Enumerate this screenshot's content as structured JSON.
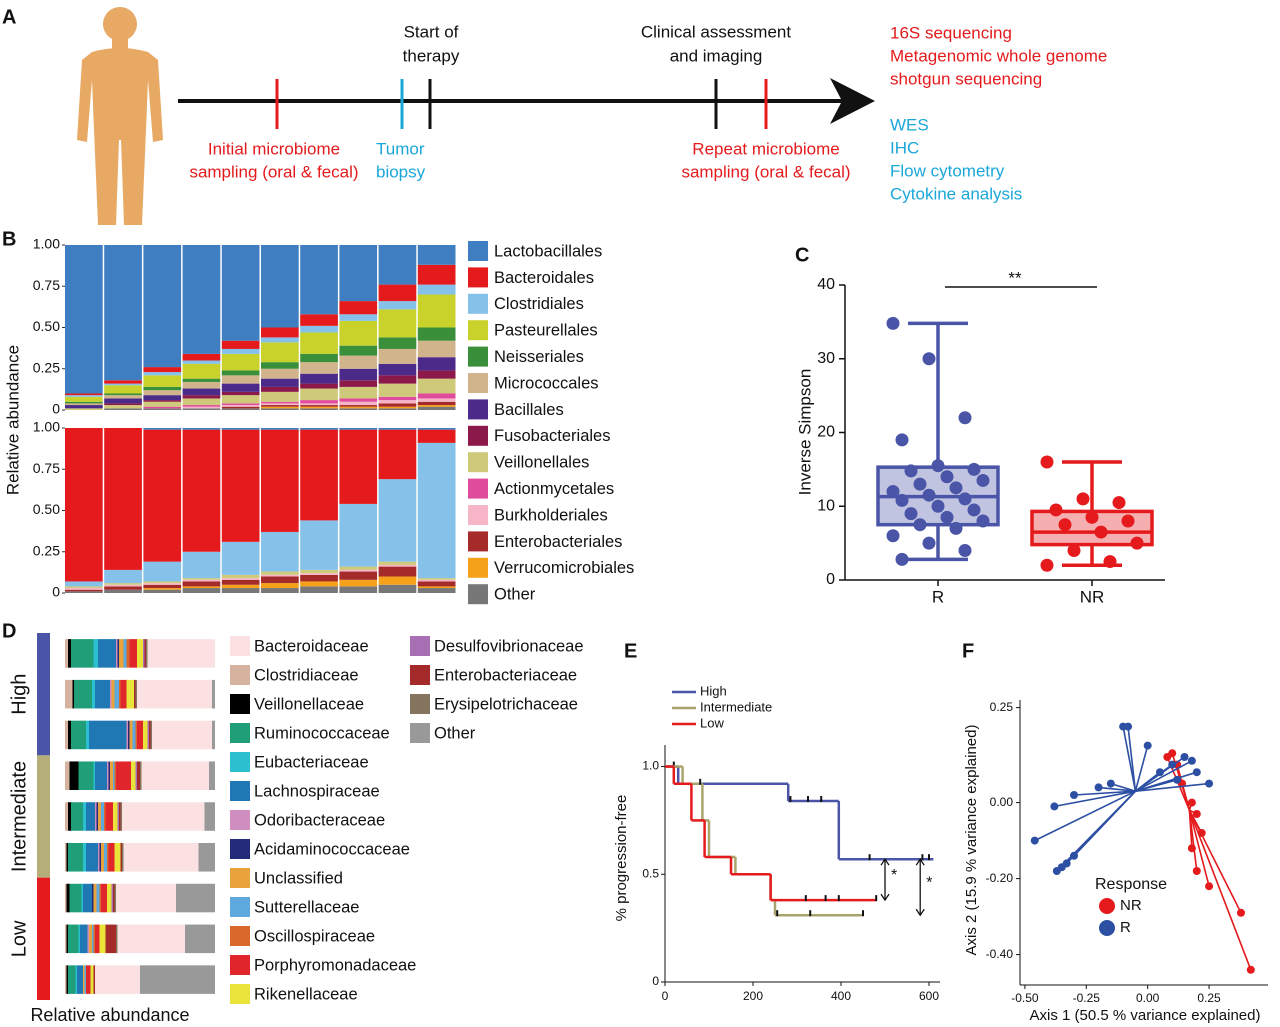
{
  "timeline": {
    "label": "A",
    "above": [
      {
        "lines": [
          "Start of",
          "therapy"
        ]
      },
      {
        "lines": [
          "Clinical assessment",
          "and imaging"
        ]
      }
    ],
    "below": [
      {
        "lines": [
          "Initial microbiome",
          "sampling (oral & fecal)"
        ],
        "color": "#e41a1c"
      },
      {
        "lines": [
          "Tumor",
          "biopsy"
        ],
        "color": "#1aa7d9"
      },
      {
        "lines": [
          "Repeat microbiome",
          "sampling (oral & fecal)"
        ],
        "color": "#e41a1c"
      }
    ],
    "outputs": [
      {
        "lines": [
          "16S sequencing",
          "Metagenomic whole genome",
          "shotgun sequencing"
        ],
        "color": "#e41a1c"
      },
      {
        "lines": [
          "WES",
          "IHC",
          "Flow cytometry",
          "Cytokine analysis"
        ],
        "color": "#1aa7d9"
      }
    ]
  },
  "chart_data": [
    {
      "type": "stacked_bar",
      "label": "B",
      "ylabel": "Relative abundance",
      "ylim": [
        0,
        1
      ],
      "yticks": [
        0,
        0.25,
        {
          "value": 0.5,
          "label": "0.50"
        },
        0.75,
        {
          "value": 1,
          "label": "1.00"
        }
      ],
      "series": [
        {
          "name": "Lactobacillales",
          "color": "#3f7fc1",
          "values": [
            0.9,
            0.82,
            0.74,
            0.66,
            0.58,
            0.5,
            0.42,
            0.34,
            0.24,
            0.12
          ],
          "lower_values": [
            0,
            0,
            0.01,
            0.01,
            0.01,
            0.01,
            0.01,
            0.01,
            0.01,
            0.01
          ]
        },
        {
          "name": "Bacteroidales",
          "color": "#e41a1c",
          "values": [
            0.01,
            0.02,
            0.03,
            0.04,
            0.05,
            0.06,
            0.07,
            0.08,
            0.1,
            0.12
          ],
          "lower_values": [
            0.93,
            0.86,
            0.8,
            0.74,
            0.68,
            0.62,
            0.55,
            0.45,
            0.3,
            0.08
          ]
        },
        {
          "name": "Clostridiales",
          "color": "#85c1e9",
          "values": [
            0.01,
            0.01,
            0.02,
            0.02,
            0.03,
            0.03,
            0.04,
            0.04,
            0.05,
            0.06
          ],
          "lower_values": [
            0.03,
            0.08,
            0.12,
            0.16,
            0.2,
            0.24,
            0.3,
            0.38,
            0.5,
            0.82
          ]
        },
        {
          "name": "Pasteurellales",
          "color": "#c8d22a",
          "values": [
            0.03,
            0.05,
            0.07,
            0.09,
            0.1,
            0.12,
            0.13,
            0.15,
            0.17,
            0.2
          ],
          "lower_values": [
            0,
            0,
            0,
            0,
            0,
            0,
            0,
            0,
            0,
            0
          ]
        },
        {
          "name": "Neisseriales",
          "color": "#3a8f3a",
          "values": [
            0.01,
            0.01,
            0.02,
            0.02,
            0.03,
            0.04,
            0.05,
            0.06,
            0.07,
            0.08
          ],
          "lower_values": [
            0,
            0,
            0,
            0,
            0,
            0,
            0,
            0,
            0,
            0
          ]
        },
        {
          "name": "Micrococcales",
          "color": "#d2b48c",
          "values": [
            0.01,
            0.02,
            0.03,
            0.04,
            0.05,
            0.06,
            0.07,
            0.08,
            0.09,
            0.1
          ],
          "lower_values": [
            0,
            0,
            0,
            0,
            0,
            0,
            0,
            0,
            0,
            0
          ]
        },
        {
          "name": "Bacillales",
          "color": "#4b2a8a",
          "values": [
            0.02,
            0.03,
            0.03,
            0.04,
            0.05,
            0.05,
            0.06,
            0.07,
            0.07,
            0.08
          ],
          "lower_values": [
            0,
            0,
            0,
            0,
            0,
            0,
            0,
            0,
            0,
            0
          ]
        },
        {
          "name": "Fusobacteriales",
          "color": "#8b1a4a",
          "values": [
            0,
            0.01,
            0.01,
            0.02,
            0.02,
            0.03,
            0.03,
            0.04,
            0.05,
            0.05
          ],
          "lower_values": [
            0,
            0,
            0,
            0,
            0,
            0,
            0,
            0,
            0,
            0
          ]
        },
        {
          "name": "Veillonellales",
          "color": "#cfc97a",
          "values": [
            0.01,
            0.02,
            0.03,
            0.04,
            0.05,
            0.06,
            0.07,
            0.07,
            0.08,
            0.09
          ],
          "lower_values": [
            0.01,
            0.01,
            0.01,
            0.01,
            0.02,
            0.02,
            0.02,
            0.02,
            0.02,
            0.01
          ]
        },
        {
          "name": "Actionmycetales",
          "color": "#e04c9c",
          "values": [
            0,
            0,
            0.01,
            0.01,
            0.01,
            0.01,
            0.02,
            0.02,
            0.02,
            0.03
          ],
          "lower_values": [
            0,
            0,
            0,
            0,
            0,
            0,
            0,
            0,
            0,
            0
          ]
        },
        {
          "name": "Burkholderiales",
          "color": "#f7b6c8",
          "values": [
            0,
            0,
            0,
            0.01,
            0.01,
            0.01,
            0.01,
            0.02,
            0.02,
            0.02
          ],
          "lower_values": [
            0.01,
            0.01,
            0.01,
            0.01,
            0.01,
            0.01,
            0.01,
            0.01,
            0.01,
            0.01
          ]
        },
        {
          "name": "Enterobacteriales",
          "color": "#a52a2a",
          "values": [
            0,
            0,
            0,
            0,
            0.01,
            0.01,
            0.01,
            0.01,
            0.02,
            0.02
          ],
          "lower_values": [
            0.01,
            0.02,
            0.02,
            0.03,
            0.03,
            0.04,
            0.04,
            0.05,
            0.06,
            0.03
          ]
        },
        {
          "name": "Verrucomicrobiales",
          "color": "#f5a11a",
          "values": [
            0,
            0,
            0,
            0,
            0,
            0.01,
            0.01,
            0.01,
            0.01,
            0.01
          ],
          "lower_values": [
            0,
            0,
            0.01,
            0.01,
            0.02,
            0.03,
            0.03,
            0.04,
            0.05,
            0.01
          ]
        },
        {
          "name": "Other",
          "color": "#777777",
          "values": [
            0,
            0.01,
            0.01,
            0.01,
            0.01,
            0.01,
            0.01,
            0.01,
            0.01,
            0.02
          ],
          "lower_values": [
            0.01,
            0.02,
            0.02,
            0.03,
            0.03,
            0.03,
            0.04,
            0.04,
            0.05,
            0.03
          ]
        }
      ]
    },
    {
      "type": "box",
      "label": "C",
      "ylabel": "Inverse Simpson",
      "ylim": [
        0,
        40
      ],
      "yticks": [
        0,
        10,
        20,
        30,
        40
      ],
      "categories": [
        "R",
        "NR"
      ],
      "significance": "**",
      "series": [
        {
          "color": "#4a55a8",
          "min": 2.8,
          "q1": 7.5,
          "median": 11.3,
          "q3": 15.3,
          "max": 34.8,
          "points": [
            34.8,
            30,
            22,
            19,
            15.5,
            15,
            14.8,
            14,
            13.5,
            13,
            12.5,
            12,
            11.5,
            11,
            10.8,
            10,
            9.5,
            9,
            8.5,
            8,
            7.5,
            7,
            6,
            5,
            4,
            2.8
          ]
        },
        {
          "color": "#e41a1c",
          "min": 2,
          "q1": 4.8,
          "median": 6.5,
          "q3": 9.3,
          "max": 16,
          "points": [
            16,
            11,
            10.5,
            9.5,
            8.5,
            8,
            7.5,
            6.5,
            5,
            4,
            2.5,
            2
          ]
        }
      ]
    },
    {
      "type": "stacked_barh",
      "label": "D",
      "xlabel": "Relative abundance",
      "xlim": [
        0,
        1
      ],
      "groups": [
        {
          "name": "High",
          "color": "#4a55a8",
          "rows": 3
        },
        {
          "name": "Intermediate",
          "color": "#b5ad7a",
          "rows": 3
        },
        {
          "name": "Low",
          "color": "#e41a1c",
          "rows": 3
        }
      ],
      "series": [
        {
          "name": "Bacteroidaceae",
          "color": "#fbe1e1",
          "values": [
            0.45,
            0.5,
            0.4,
            0.45,
            0.55,
            0.5,
            0.4,
            0.45,
            0.3
          ]
        },
        {
          "name": "Clostridiaceae",
          "color": "#d6b39e",
          "values": [
            0.02,
            0.05,
            0.02,
            0.03,
            0.02,
            0.01,
            0.01,
            0.01,
            0.01
          ]
        },
        {
          "name": "Veillonellaceae",
          "color": "#000000",
          "values": [
            0.02,
            0.01,
            0.02,
            0.06,
            0.02,
            0.01,
            0.02,
            0.01,
            0.01
          ]
        },
        {
          "name": "Ruminococcaceae",
          "color": "#1f9e77",
          "values": [
            0.15,
            0.12,
            0.1,
            0.1,
            0.08,
            0.1,
            0.08,
            0.07,
            0.05
          ]
        },
        {
          "name": "Eubacteriaceae",
          "color": "#2bbfcf",
          "values": [
            0.03,
            0.02,
            0.02,
            0.01,
            0.02,
            0.02,
            0.01,
            0.01,
            0.01
          ]
        },
        {
          "name": "Lachnospiraceae",
          "color": "#1f78b4",
          "values": [
            0.12,
            0.1,
            0.25,
            0.08,
            0.06,
            0.08,
            0.06,
            0.05,
            0.04
          ]
        },
        {
          "name": "Odoribacteraceae",
          "color": "#d08dc0",
          "values": [
            0.01,
            0.01,
            0.01,
            0.01,
            0.01,
            0.01,
            0,
            0.01,
            0
          ]
        },
        {
          "name": "Acidaminococcaceae",
          "color": "#232b78",
          "values": [
            0.01,
            0,
            0.01,
            0.01,
            0.01,
            0.01,
            0.01,
            0,
            0
          ]
        },
        {
          "name": "Unclassified",
          "color": "#e8a33d",
          "values": [
            0.03,
            0.02,
            0.02,
            0.02,
            0.02,
            0.02,
            0.02,
            0.02,
            0.01
          ]
        },
        {
          "name": "Sutterellaceae",
          "color": "#5ea9dd",
          "values": [
            0.02,
            0.03,
            0.02,
            0.01,
            0.02,
            0.02,
            0.02,
            0.01,
            0.01
          ]
        },
        {
          "name": "Oscillospiraceae",
          "color": "#d9692b",
          "values": [
            0.02,
            0.01,
            0.01,
            0.01,
            0.01,
            0.01,
            0.01,
            0.01,
            0
          ]
        },
        {
          "name": "Porphyromonadaceae",
          "color": "#e0262b",
          "values": [
            0.05,
            0.04,
            0.04,
            0.1,
            0.05,
            0.04,
            0.04,
            0.03,
            0.03
          ]
        },
        {
          "name": "Rikenellaceae",
          "color": "#e9e33a",
          "values": [
            0.04,
            0.05,
            0.03,
            0.03,
            0.03,
            0.04,
            0.03,
            0.04,
            0.02
          ]
        },
        {
          "name": "Desulfovibrionaceae",
          "color": "#a86fb5",
          "values": [
            0.01,
            0,
            0.01,
            0.01,
            0.01,
            0,
            0.01,
            0,
            0
          ]
        },
        {
          "name": "Enterobacteriaceae",
          "color": "#a52a2a",
          "values": [
            0.01,
            0.01,
            0.01,
            0.02,
            0.01,
            0.01,
            0.01,
            0.07,
            0.01
          ]
        },
        {
          "name": "Erysipelotrichaceae",
          "color": "#857560",
          "values": [
            0.01,
            0.01,
            0.01,
            0.01,
            0.01,
            0.01,
            0.01,
            0.01,
            0
          ]
        },
        {
          "name": "Other",
          "color": "#999999",
          "values": [
            0,
            0.02,
            0.02,
            0.04,
            0.07,
            0.11,
            0.26,
            0.2,
            0.5
          ]
        }
      ]
    },
    {
      "type": "step",
      "label": "E",
      "ylabel": "% progression-free",
      "xlim": [
        0,
        625
      ],
      "ylim": [
        0,
        1.1
      ],
      "xticks": [
        0,
        200,
        400,
        600
      ],
      "yticks": [
        0,
        0.5,
        {
          "value": 1,
          "label": "1.0"
        }
      ],
      "series": [
        {
          "name": "High",
          "color": "#4a55a8",
          "x": [
            0,
            30,
            280,
            395,
            610
          ],
          "values": [
            1,
            0.92,
            0.84,
            0.57,
            0.57
          ],
          "censored": [
            20,
            285,
            325,
            355,
            465,
            585,
            600
          ]
        },
        {
          "name": "Intermediate",
          "color": "#a9a46e",
          "x": [
            0,
            40,
            85,
            100,
            160,
            240,
            250,
            450
          ],
          "values": [
            1,
            0.92,
            0.75,
            0.58,
            0.5,
            0.38,
            0.31,
            0.31
          ],
          "censored": [
            80,
            255,
            330,
            450
          ]
        },
        {
          "name": "Low",
          "color": "#e41a1c",
          "x": [
            0,
            20,
            60,
            90,
            150,
            240,
            480
          ],
          "values": [
            1,
            0.92,
            0.75,
            0.58,
            0.5,
            0.38,
            0.38
          ],
          "censored": [
            320,
            365,
            395,
            480
          ]
        }
      ],
      "annotations": [
        {
          "text": "*",
          "x": 500,
          "from": 0.57,
          "to": 0.38
        },
        {
          "text": "*",
          "x": 580,
          "from": 0.57,
          "to": 0.31
        }
      ]
    },
    {
      "type": "scatter",
      "label": "F",
      "xlabel": "Axis 1 (50.5 % variance explained)",
      "ylabel": "Axis 2 (15.9 % variance explained)",
      "xlim": [
        -0.52,
        0.49
      ],
      "ylim": [
        -0.48,
        0.27
      ],
      "xticks": [
        {
          "value": -0.5,
          "label": "-0.50"
        },
        -0.25,
        {
          "value": 0,
          "label": "0.00"
        },
        0.25
      ],
      "yticks": [
        {
          "value": -0.4,
          "label": "-0.40"
        },
        {
          "value": -0.2,
          "label": "-0.20"
        },
        {
          "value": 0,
          "label": "0.00"
        },
        0.25
      ],
      "legend_title": "Response",
      "series": [
        {
          "name": "NR",
          "color": "#e41a1c",
          "centroid": [
            0.17,
            -0.02
          ],
          "x": [
            0.08,
            0.12,
            0.14,
            0.18,
            0.2,
            0.22,
            0.18,
            0.2,
            0.25,
            0.38,
            0.42,
            0.1
          ],
          "values": [
            0.12,
            0.1,
            0.05,
            0.0,
            -0.03,
            -0.08,
            -0.12,
            -0.18,
            -0.22,
            -0.29,
            -0.44,
            0.13
          ]
        },
        {
          "name": "R",
          "color": "#2c4fa3",
          "centroid": [
            -0.05,
            0.03
          ],
          "x": [
            -0.46,
            -0.37,
            -0.35,
            -0.33,
            -0.3,
            -0.38,
            -0.3,
            -0.2,
            -0.15,
            -0.1,
            -0.08,
            0.05,
            0.1,
            0.15,
            0.2,
            0.25,
            0.12,
            0.0,
            0.18
          ],
          "values": [
            -0.1,
            -0.18,
            -0.17,
            -0.16,
            -0.14,
            -0.01,
            0.02,
            0.04,
            0.05,
            0.2,
            0.2,
            0.08,
            0.1,
            0.12,
            0.08,
            0.05,
            0.06,
            0.15,
            0.11
          ]
        }
      ]
    }
  ]
}
